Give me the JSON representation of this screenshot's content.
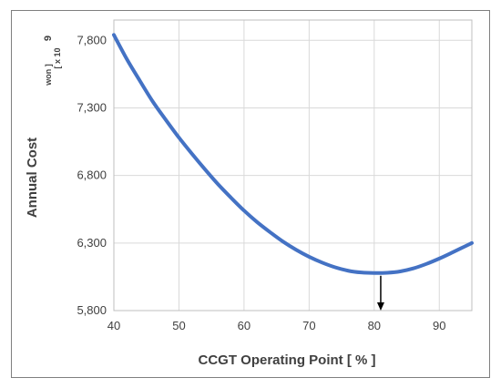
{
  "chart_data": {
    "type": "line",
    "xlabel": "CCGT Operating Point  [ % ]",
    "ylabel": "Annual Cost",
    "ylabel_unit_prefix": "[ x 10",
    "ylabel_unit_exponent": "9",
    "ylabel_unit_suffix": "won ]",
    "xlim": [
      40,
      95
    ],
    "ylim": [
      5800,
      7950
    ],
    "x_ticks": [
      40,
      50,
      60,
      70,
      80,
      90
    ],
    "y_ticks": [
      5800,
      6300,
      6800,
      7300,
      7800
    ],
    "x_tick_labels": [
      "40",
      "50",
      "60",
      "70",
      "80",
      "90"
    ],
    "y_tick_labels": [
      "5,800",
      "6,300",
      "6,800",
      "7,300",
      "7,800"
    ],
    "grid": true,
    "legend": "none",
    "series": [
      {
        "color": "#4472c4",
        "x": [
          40,
          42,
          44,
          46,
          48,
          50,
          52,
          54,
          56,
          58,
          60,
          62,
          64,
          66,
          68,
          70,
          72,
          74,
          76,
          78,
          80,
          82,
          84,
          86,
          88,
          90,
          92,
          95
        ],
        "y": [
          7840,
          7660,
          7500,
          7345,
          7210,
          7080,
          6960,
          6845,
          6735,
          6635,
          6540,
          6455,
          6380,
          6310,
          6250,
          6198,
          6155,
          6120,
          6095,
          6082,
          6078,
          6080,
          6090,
          6112,
          6145,
          6185,
          6230,
          6300
        ]
      }
    ],
    "annotations": [
      {
        "type": "arrow",
        "direction": "down",
        "x": 81,
        "y_from": 6078,
        "y_to": 5800,
        "color": "#000000"
      }
    ]
  }
}
